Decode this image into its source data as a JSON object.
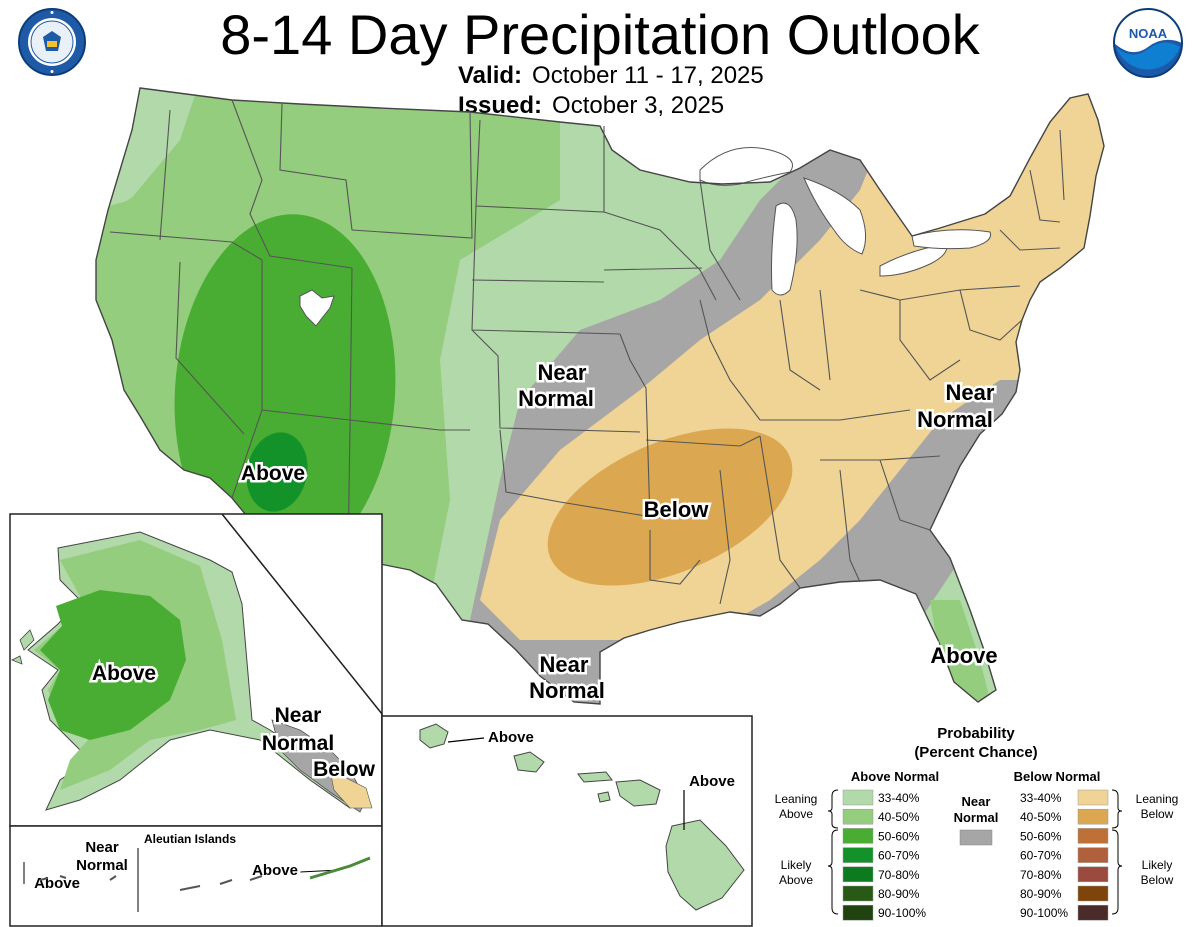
{
  "header": {
    "title": "8-14 Day Precipitation Outlook",
    "valid_label": "Valid:",
    "valid_dates": "October 11 - 17, 2025",
    "issued_label": "Issued:",
    "issued_date": "October 3, 2025",
    "left_logo_text": "DEPARTMENT OF COMMERCE · UNITED STATES OF AMERICA",
    "right_logo_text": "NOAA"
  },
  "map_labels": {
    "conus_near_normal_central": [
      "Near",
      "Normal"
    ],
    "conus_near_normal_east": [
      "Near",
      "Normal"
    ],
    "conus_near_normal_south": [
      "Near",
      "Normal"
    ],
    "conus_above_west": "Above",
    "conus_below_central": "Below",
    "conus_above_florida": "Above",
    "alaska_above": "Above",
    "alaska_near_normal": [
      "Near",
      "Normal"
    ],
    "alaska_below": "Below",
    "aleutian_title": "Aleutian Islands",
    "aleutian_near_normal": [
      "Near",
      "Normal"
    ],
    "aleutian_above_west": "Above",
    "aleutian_above_east": "Above",
    "hawaii_above_kauai": "Above",
    "hawaii_above_big_island": "Above"
  },
  "legend": {
    "title_line1": "Probability",
    "title_line2": "(Percent Chance)",
    "above_header": "Above Normal",
    "below_header": "Below Normal",
    "near_header": [
      "Near",
      "Normal"
    ],
    "leaning_above": [
      "Leaning",
      "Above"
    ],
    "likely_above": [
      "Likely",
      "Above"
    ],
    "leaning_below": [
      "Leaning",
      "Below"
    ],
    "likely_below": [
      "Likely",
      "Below"
    ],
    "above_bins": [
      {
        "label": "33-40%",
        "color": "#b2d9a9"
      },
      {
        "label": "40-50%",
        "color": "#94cd7e"
      },
      {
        "label": "50-60%",
        "color": "#4aad33"
      },
      {
        "label": "60-70%",
        "color": "#14922a"
      },
      {
        "label": "70-80%",
        "color": "#0c7a1e"
      },
      {
        "label": "80-90%",
        "color": "#285a16"
      },
      {
        "label": "90-100%",
        "color": "#20420f"
      }
    ],
    "below_bins": [
      {
        "label": "33-40%",
        "color": "#f0d495"
      },
      {
        "label": "40-50%",
        "color": "#dba851"
      },
      {
        "label": "50-60%",
        "color": "#bf7037"
      },
      {
        "label": "60-70%",
        "color": "#b0603a"
      },
      {
        "label": "70-80%",
        "color": "#9b4a3e"
      },
      {
        "label": "80-90%",
        "color": "#7e4409"
      },
      {
        "label": "90-100%",
        "color": "#4b2a2a"
      }
    ],
    "near_color": "#a6a6a6"
  },
  "colors": {
    "near_normal": "#a6a6a6",
    "lakes": "#ffffff"
  }
}
